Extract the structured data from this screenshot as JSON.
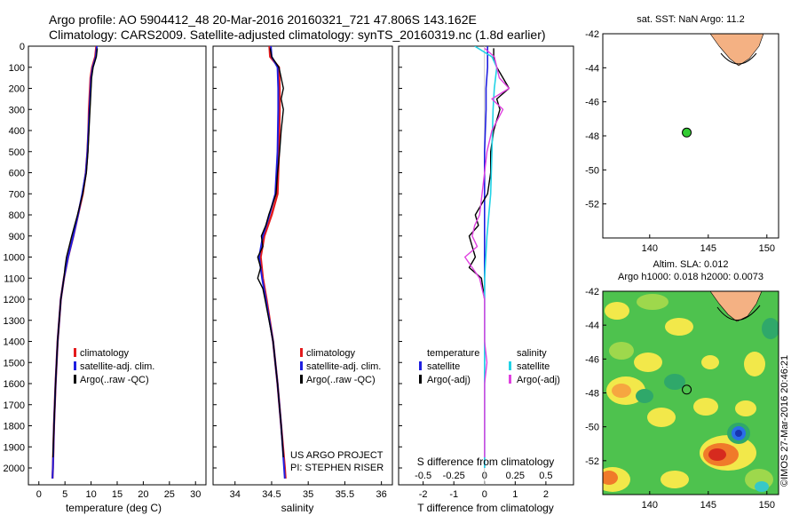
{
  "header": {
    "line1": "Argo profile: AO 5904412_48 20-Mar-2016 20160321_721 47.806S 143.162E",
    "line2": "Climatology: CARS2009. Satellite-adjusted climatology: synTS_20160319.nc (1.8d earlier)"
  },
  "colors": {
    "climatology": "#e41a1c",
    "satellite": "#1f1fe0",
    "argo": "#000000",
    "s_satellite": "#22d3e6",
    "s_argo": "#e040e0",
    "land": "#f4b183",
    "float_marker": "#33cc33"
  },
  "ytick_labels": [
    "0",
    "100",
    "200",
    "300",
    "400",
    "500",
    "600",
    "700",
    "800",
    "900",
    "1000",
    "1100",
    "1200",
    "1300",
    "1400",
    "1500",
    "1600",
    "1700",
    "1800",
    "1900",
    "2000"
  ],
  "chart_data": [
    {
      "id": "temperature",
      "type": "line",
      "xlabel": "temperature (deg C)",
      "xlim": [
        -2,
        32
      ],
      "ylim": [
        2080,
        0
      ],
      "xticks": [
        0,
        5,
        10,
        15,
        20,
        25,
        30
      ],
      "xtick_labels": [
        "0",
        "5",
        "10",
        "15",
        "20",
        "25",
        "30"
      ],
      "legend": [
        "climatology",
        "satellite-adj. clim.",
        "Argo(..raw -QC)"
      ],
      "series": [
        {
          "name": "climatology",
          "depth": [
            0,
            50,
            100,
            150,
            200,
            300,
            400,
            500,
            600,
            700,
            800,
            900,
            1000,
            1100,
            1200,
            1400,
            1600,
            1800,
            2000,
            2050
          ],
          "values": [
            11.0,
            10.8,
            10.2,
            9.9,
            9.8,
            9.6,
            9.5,
            9.3,
            9.0,
            8.4,
            7.5,
            6.6,
            5.6,
            4.8,
            4.2,
            3.6,
            3.2,
            2.9,
            2.7,
            2.6
          ]
        },
        {
          "name": "satellite-adj. clim.",
          "depth": [
            0,
            50,
            100,
            150,
            200,
            300,
            400,
            500,
            600,
            700,
            800,
            900,
            1000,
            1100,
            1200,
            1400,
            1600,
            1800,
            2000,
            2050
          ],
          "values": [
            11.1,
            10.9,
            10.3,
            10.0,
            9.9,
            9.7,
            9.5,
            9.3,
            9.0,
            8.3,
            7.5,
            6.6,
            5.6,
            4.8,
            4.2,
            3.6,
            3.2,
            2.9,
            2.7,
            2.6
          ]
        },
        {
          "name": "Argo(..raw -QC)",
          "depth": [
            10,
            50,
            100,
            150,
            200,
            300,
            400,
            500,
            600,
            700,
            800,
            900,
            1000,
            1050,
            1100,
            1200,
            1400,
            1600,
            1800,
            1950
          ],
          "values": [
            11.2,
            11.0,
            10.4,
            10.1,
            10.0,
            9.8,
            9.6,
            9.4,
            9.1,
            8.4,
            7.4,
            6.3,
            5.3,
            5.0,
            4.8,
            4.2,
            3.6,
            3.2,
            2.9,
            2.7
          ]
        }
      ]
    },
    {
      "id": "salinity",
      "type": "line",
      "xlabel": "salinity",
      "xlim": [
        33.7,
        36.15
      ],
      "ylim": [
        2080,
        0
      ],
      "xticks": [
        34,
        34.5,
        35,
        35.5,
        36
      ],
      "xtick_labels": [
        "34",
        "34.5",
        "35",
        "35.5",
        "36"
      ],
      "legend": [
        "climatology",
        "satellite-adj. clim.",
        "Argo(..raw -QC)"
      ],
      "annotations": [
        "US ARGO PROJECT",
        "PI: STEPHEN RISER"
      ],
      "series": [
        {
          "name": "climatology",
          "depth": [
            0,
            50,
            100,
            200,
            300,
            500,
            700,
            800,
            900,
            1000,
            1100,
            1200,
            1400,
            1600,
            1800,
            2000,
            2050
          ],
          "values": [
            34.47,
            34.48,
            34.6,
            34.61,
            34.61,
            34.6,
            34.58,
            34.5,
            34.4,
            34.35,
            34.38,
            34.43,
            34.52,
            34.58,
            34.63,
            34.68,
            34.69
          ]
        },
        {
          "name": "satellite-adj. clim.",
          "depth": [
            0,
            50,
            100,
            200,
            300,
            500,
            700,
            800,
            900,
            1000,
            1100,
            1200,
            1400,
            1600,
            1800,
            2000,
            2050
          ],
          "values": [
            34.49,
            34.5,
            34.58,
            34.59,
            34.59,
            34.58,
            34.55,
            34.47,
            34.38,
            34.33,
            34.37,
            34.42,
            34.52,
            34.58,
            34.63,
            34.67,
            34.68
          ]
        },
        {
          "name": "Argo(..raw -QC)",
          "depth": [
            10,
            50,
            100,
            150,
            200,
            250,
            300,
            400,
            500,
            600,
            700,
            800,
            850,
            900,
            950,
            1000,
            1050,
            1100,
            1150,
            1200,
            1400,
            1600,
            1800,
            1950
          ],
          "values": [
            34.48,
            34.5,
            34.6,
            34.63,
            34.66,
            34.63,
            34.66,
            34.63,
            34.61,
            34.58,
            34.56,
            34.46,
            34.42,
            34.36,
            34.38,
            34.31,
            34.35,
            34.31,
            34.38,
            34.41,
            34.52,
            34.58,
            34.63,
            34.66
          ]
        }
      ]
    },
    {
      "id": "difference",
      "type": "line",
      "xlabel": "T difference from climatology",
      "xlabel_top": "S difference from climatology",
      "xlim": [
        -2.8,
        2.9
      ],
      "ylim": [
        2080,
        0
      ],
      "xticks": [
        -2,
        -1,
        0,
        1,
        2
      ],
      "xtick_labels": [
        "-2",
        "-1",
        "0",
        "1",
        "2"
      ],
      "s_axis_labels": [
        "-0.5",
        "-0.25",
        "0",
        "0.25",
        "0.5"
      ],
      "s_axis_positions_T": [
        -2,
        -1,
        0,
        1,
        2
      ],
      "legend_temperature_title": "temperature",
      "legend_salinity_title": "salinity",
      "legend_entries": [
        "satellite",
        "Argo(-adj)",
        "satellite",
        "Argo(-adj)"
      ],
      "series": [
        {
          "name": "T satellite",
          "depth": [
            0,
            50,
            100,
            200,
            300,
            500,
            700,
            900,
            1100,
            1300,
            1600,
            2000
          ],
          "values": [
            0.1,
            0.1,
            0.1,
            0.05,
            0.05,
            0.0,
            0.0,
            0.0,
            0.0,
            0.0,
            0.0,
            0.0
          ]
        },
        {
          "name": "T Argo(-adj)",
          "depth": [
            10,
            50,
            100,
            150,
            200,
            250,
            300,
            400,
            500,
            600,
            700,
            800,
            850,
            900,
            950,
            1000,
            1050,
            1100,
            1200,
            1400,
            1600,
            1800,
            1950
          ],
          "values": [
            0.3,
            0.3,
            0.4,
            0.6,
            0.8,
            0.4,
            0.5,
            0.3,
            0.2,
            0.2,
            0.1,
            -0.3,
            -0.2,
            -0.5,
            -0.4,
            -0.3,
            -0.5,
            -0.1,
            0.0,
            0.0,
            0.0,
            0.0,
            0.0
          ]
        },
        {
          "name": "S satellite",
          "depth": [
            0,
            50,
            100,
            200,
            300,
            500,
            700,
            900,
            1100,
            1300,
            1600,
            2000
          ],
          "values": [
            -0.08,
            0.06,
            0.1,
            0.08,
            0.07,
            0.06,
            0.05,
            0.02,
            0.0,
            0.0,
            0.0,
            0.0
          ]
        },
        {
          "name": "S Argo(-adj)",
          "depth": [
            10,
            50,
            100,
            150,
            200,
            250,
            300,
            400,
            500,
            600,
            700,
            800,
            850,
            900,
            950,
            1000,
            1050,
            1100,
            1200,
            1400,
            1500,
            1600,
            1800,
            1950
          ],
          "values": [
            0.0,
            0.08,
            0.1,
            0.12,
            0.2,
            0.06,
            0.15,
            0.06,
            0.02,
            0.0,
            -0.02,
            -0.04,
            -0.08,
            -0.1,
            -0.06,
            -0.16,
            -0.1,
            -0.04,
            0.0,
            0.0,
            0.02,
            0.0,
            0.0,
            0.0
          ]
        }
      ]
    },
    {
      "id": "sst_map",
      "type": "scatter",
      "title": "sat. SST: NaN Argo: 11.2",
      "xlim": [
        136,
        151
      ],
      "ylim": [
        -54,
        -42
      ],
      "xtick_labels": [
        "140",
        "145",
        "150"
      ],
      "ytick_labels": [
        "-42",
        "-44",
        "-46",
        "-48",
        "-50",
        "-52"
      ],
      "points": [
        {
          "x": 143.162,
          "y": -47.806,
          "label": "Argo float"
        }
      ]
    },
    {
      "id": "sla_map",
      "type": "heatmap",
      "title": "Altim. SLA: 0.012",
      "subtitle": "Argo h1000: 0.018 h2000: 0.0073",
      "xlim": [
        136,
        151
      ],
      "ylim": [
        -54,
        -42
      ],
      "xtick_labels": [
        "140",
        "145",
        "150"
      ],
      "ytick_labels": [
        "-42",
        "-44",
        "-46",
        "-48",
        "-50",
        "-52"
      ],
      "points": [
        {
          "x": 143.162,
          "y": -47.806,
          "label": "Argo float"
        }
      ],
      "features": [
        {
          "kind": "high",
          "x": 147.4,
          "y": -51.8
        },
        {
          "kind": "low",
          "x": 147.2,
          "y": -50.3
        },
        {
          "kind": "low",
          "x": 141.0,
          "y": -47.2
        },
        {
          "kind": "high",
          "x": 137.5,
          "y": -52.8
        }
      ]
    }
  ],
  "footer": {
    "copyright": "©IMOS 27-Mar-2016 20:46:21"
  }
}
